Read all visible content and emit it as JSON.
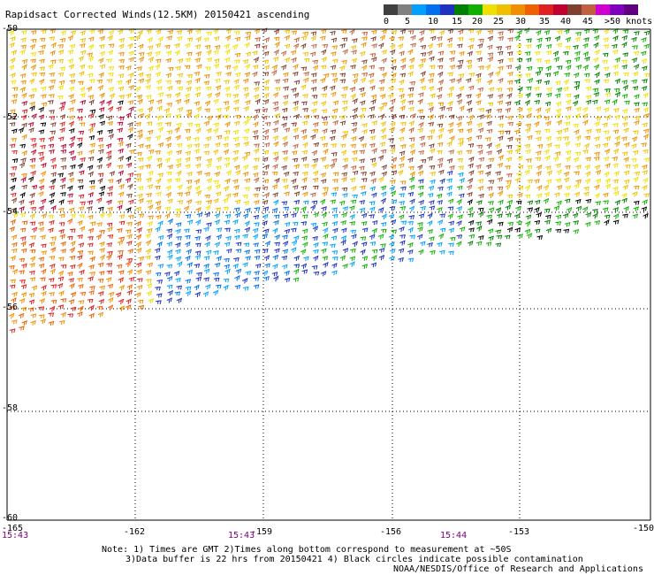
{
  "title": "Rapidsact Corrected Winds(12.5KM) 20150421 ascending",
  "legend": {
    "colors": [
      "#404040",
      "#808080",
      "#00a0ff",
      "#0070f0",
      "#2030c0",
      "#008000",
      "#10b000",
      "#f0e000",
      "#f0c000",
      "#f09000",
      "#f06000",
      "#e02020",
      "#c00030",
      "#804030",
      "#c06040",
      "#d000d0",
      "#8000c0",
      "#600080"
    ],
    "labels": [
      "0",
      "5",
      "10",
      "15",
      "20",
      "25",
      "30",
      "35",
      "40",
      "45",
      ">50 knots"
    ]
  },
  "lat_labels": [
    "-50",
    "-52",
    "-54",
    "-56",
    "-58",
    "-60"
  ],
  "lon_labels": [
    "-165",
    "-162",
    "-159",
    "-156",
    "-153",
    "-150"
  ],
  "time_labels": [
    "15:43",
    "15:43",
    "15:44"
  ],
  "notes": {
    "line1": "Note: 1) Times are GMT 2)Times along bottom correspond to measurement at ~50S",
    "line2": "3)Data buffer is 22 hrs from 20150421 4) Black circles indicate possible contamination"
  },
  "credit": "NOAA/NESDIS/Office of Research and Applications"
}
